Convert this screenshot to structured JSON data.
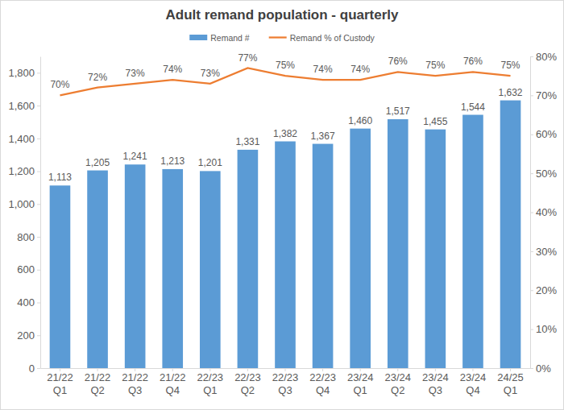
{
  "chart_data": {
    "type": "bar",
    "title": "Adult remand population - quarterly",
    "categories": [
      "21/22 Q1",
      "21/22 Q2",
      "21/22 Q3",
      "21/22 Q4",
      "22/23 Q1",
      "22/23 Q2",
      "22/23 Q3",
      "22/23 Q4",
      "23/24 Q1",
      "23/24 Q2",
      "23/24 Q3",
      "23/24 Q4",
      "24/25 Q1"
    ],
    "series": [
      {
        "name": "Remand #",
        "type": "bar",
        "color": "#5b9bd5",
        "values": [
          1113,
          1205,
          1241,
          1213,
          1201,
          1331,
          1382,
          1367,
          1460,
          1517,
          1455,
          1544,
          1632
        ],
        "value_labels": [
          "1,113",
          "1,205",
          "1,241",
          "1,213",
          "1,201",
          "1,331",
          "1,382",
          "1,367",
          "1,460",
          "1,517",
          "1,455",
          "1,544",
          "1,632"
        ]
      },
      {
        "name": "Remand % of Custody",
        "type": "line",
        "color": "#ed7d31",
        "axis": "y2",
        "values": [
          70,
          72,
          73,
          74,
          73,
          77,
          75,
          74,
          74,
          76,
          75,
          76,
          75
        ],
        "value_labels": [
          "70%",
          "72%",
          "73%",
          "74%",
          "73%",
          "77%",
          "75%",
          "74%",
          "74%",
          "76%",
          "75%",
          "76%",
          "75%"
        ]
      }
    ],
    "ylim": [
      0,
      1900
    ],
    "yticks": [
      0,
      200,
      400,
      600,
      800,
      {
        "value": 1000,
        "label": "1,000"
      },
      {
        "value": 1200,
        "label": "1,200"
      },
      {
        "value": 1400,
        "label": "1,400"
      },
      {
        "value": 1600,
        "label": "1,600"
      },
      {
        "value": 1800,
        "label": "1,800"
      }
    ],
    "y2lim": [
      0,
      80
    ],
    "y2ticks": [
      {
        "value": 0,
        "label": "0%"
      },
      {
        "value": 10,
        "label": "10%"
      },
      {
        "value": 20,
        "label": "20%"
      },
      {
        "value": 30,
        "label": "30%"
      },
      {
        "value": 40,
        "label": "40%"
      },
      {
        "value": 50,
        "label": "50%"
      },
      {
        "value": 60,
        "label": "60%"
      },
      {
        "value": 70,
        "label": "70%"
      },
      {
        "value": 80,
        "label": "80%"
      }
    ],
    "grid": false,
    "legend": "top",
    "data_labels": true
  }
}
